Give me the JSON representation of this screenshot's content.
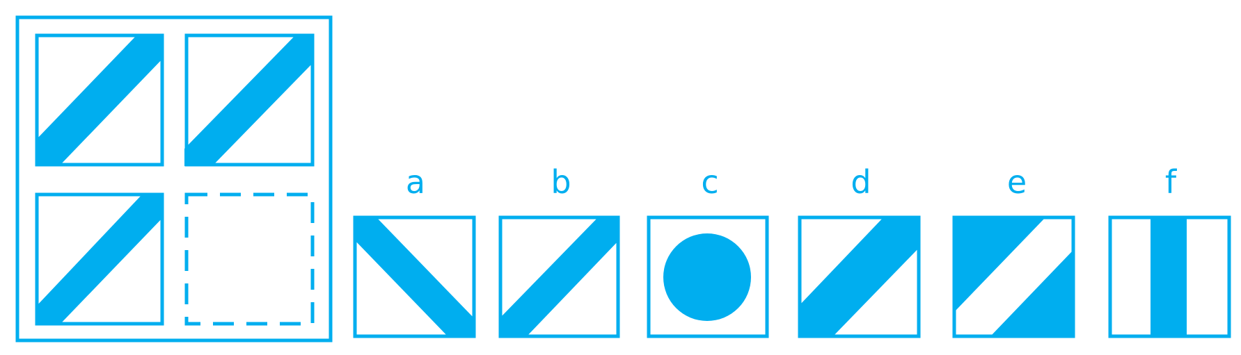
{
  "colors": {
    "accent": "#00aeef",
    "background": "#ffffff"
  },
  "puzzle": {
    "cells": [
      {
        "pattern": "diagonal-band-ascending-bottom-left"
      },
      {
        "pattern": "diagonal-band-ascending-bottom-left"
      },
      {
        "pattern": "diagonal-band-ascending-bottom-left"
      },
      {
        "pattern": "missing-dashed-outline"
      }
    ]
  },
  "options": [
    {
      "label": "a",
      "pattern": "diagonal-band-descending"
    },
    {
      "label": "b",
      "pattern": "diagonal-band-ascending-bottom-left"
    },
    {
      "label": "c",
      "pattern": "filled-circle"
    },
    {
      "label": "d",
      "pattern": "wide-diagonal-band-ascending"
    },
    {
      "label": "e",
      "pattern": "filled-with-white-diagonal-stripe"
    },
    {
      "label": "f",
      "pattern": "vertical-center-bar"
    }
  ]
}
